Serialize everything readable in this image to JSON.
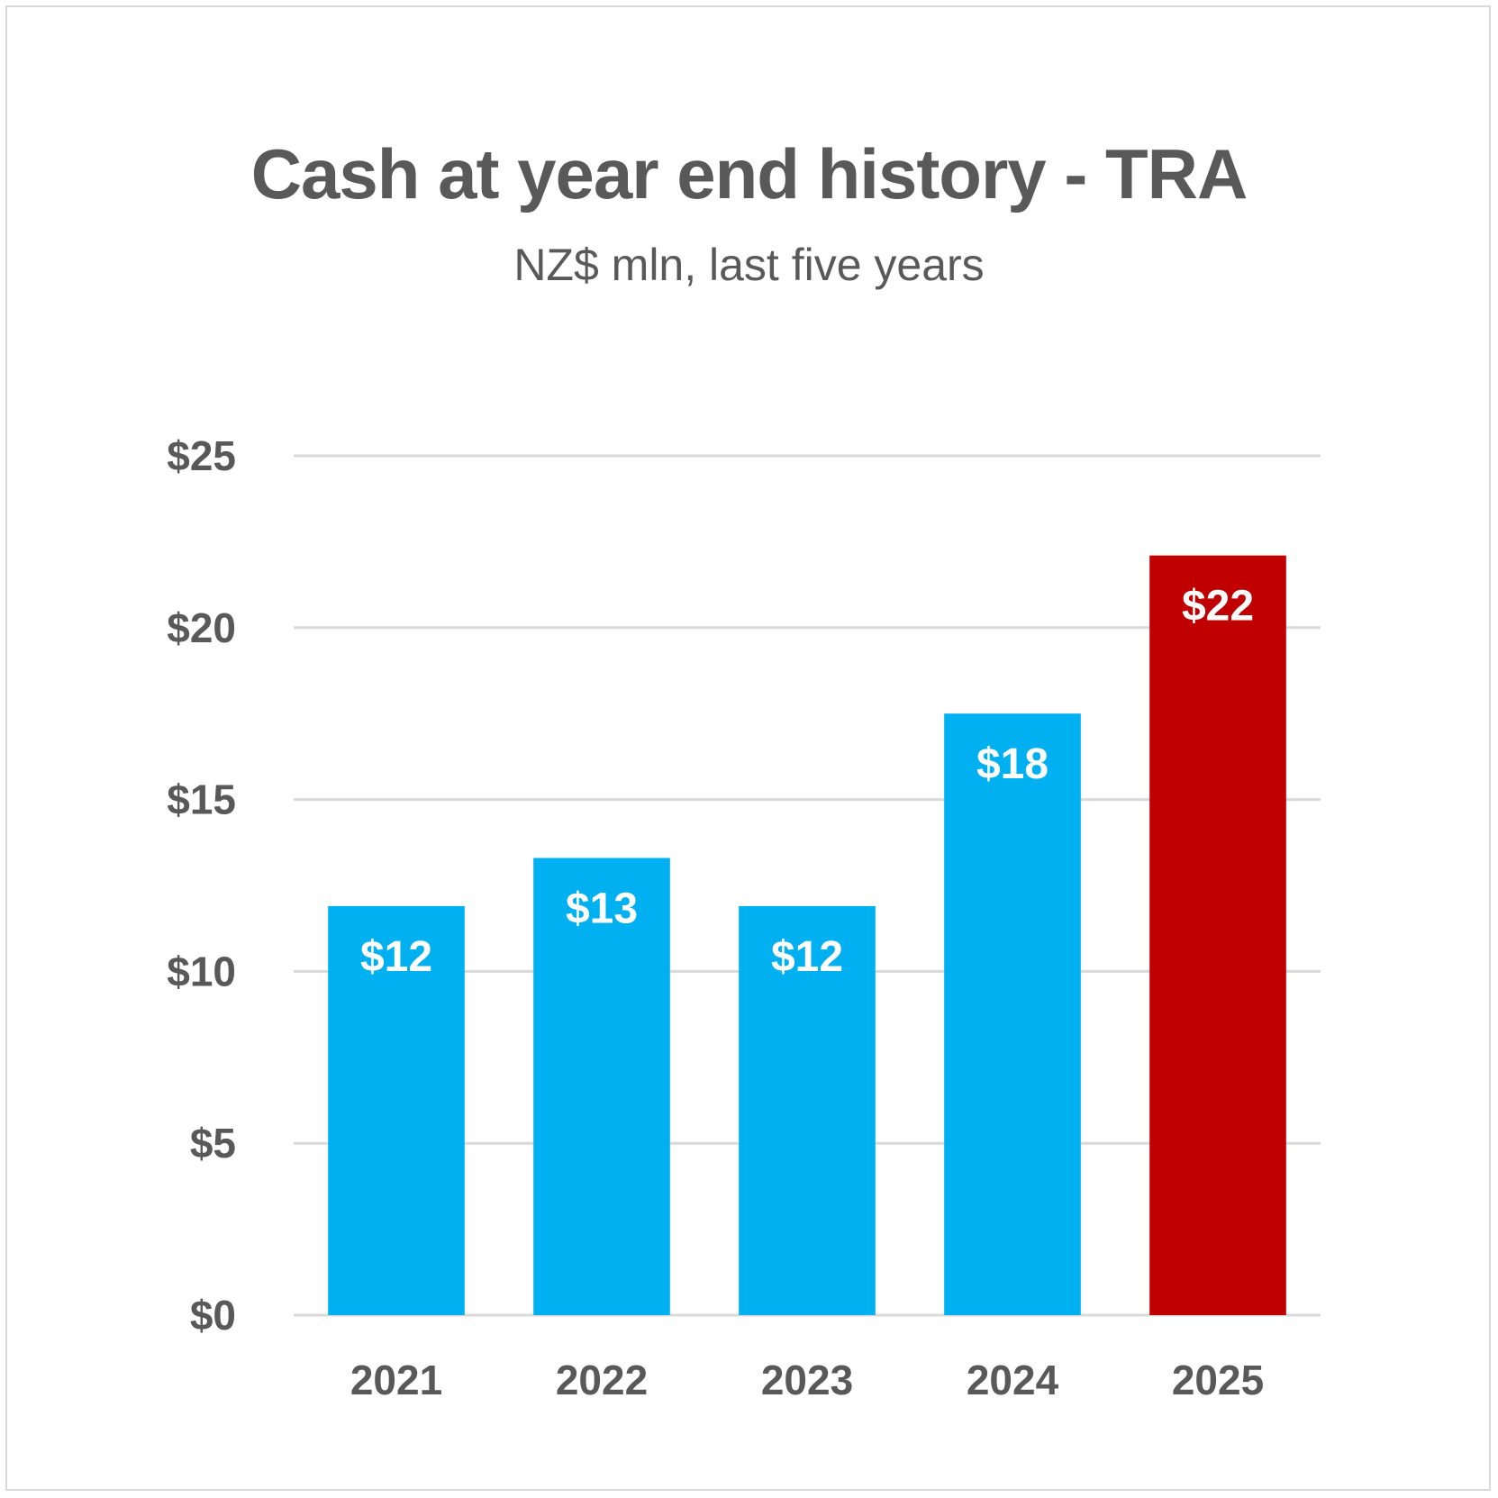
{
  "chart_data": {
    "type": "bar",
    "title": "Cash at year end history - TRA",
    "subtitle": "NZ$ mln, last five years",
    "categories": [
      "2021",
      "2022",
      "2023",
      "2024",
      "2025"
    ],
    "values": [
      12,
      13,
      12,
      18,
      22
    ],
    "bar_heights": [
      11.9,
      13.3,
      11.9,
      17.5,
      22.1
    ],
    "data_labels": [
      "$12",
      "$13",
      "$12",
      "$18",
      "$22"
    ],
    "bar_colors": [
      "#00b0f0",
      "#00b0f0",
      "#00b0f0",
      "#00b0f0",
      "#c00000"
    ],
    "yticks": [
      0,
      5,
      10,
      15,
      20,
      25
    ],
    "ytick_labels": [
      "$0",
      "$5",
      "$10",
      "$15",
      "$20",
      "$25"
    ],
    "ylim": [
      0,
      25
    ],
    "grid": true,
    "xlabel": "",
    "ylabel": ""
  }
}
